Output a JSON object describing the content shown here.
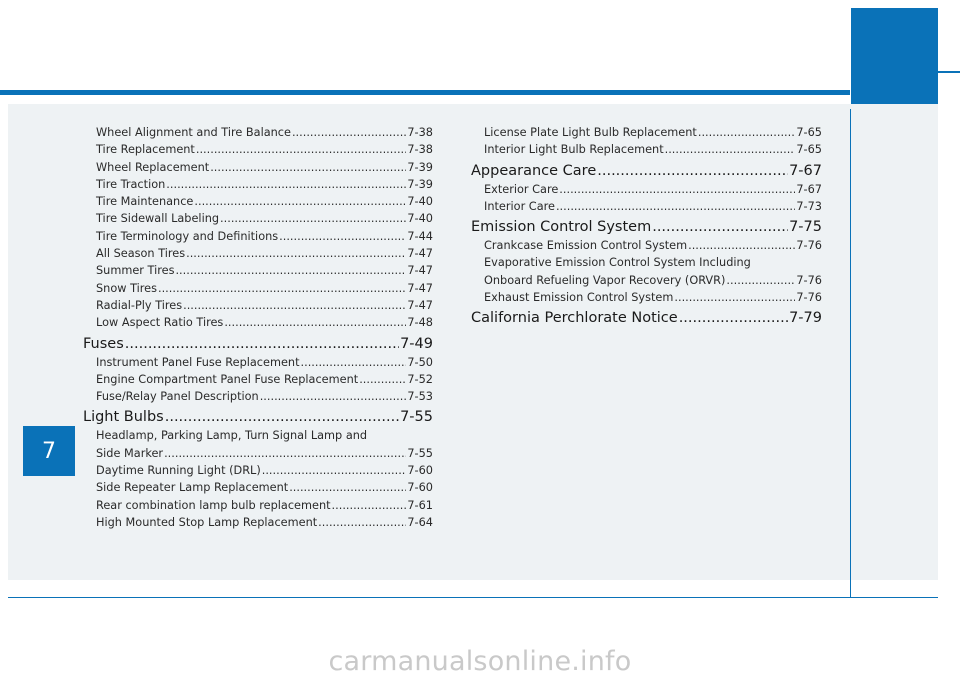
{
  "chapter": {
    "number": "7"
  },
  "left_column": {
    "entries": [
      {
        "title": "Wheel Alignment and Tire Balance",
        "page": "7-38"
      },
      {
        "title": "Tire Replacement",
        "page": "7-38"
      },
      {
        "title": "Wheel Replacement",
        "page": "7-39"
      },
      {
        "title": "Tire Traction",
        "page": "7-39"
      },
      {
        "title": "Tire Maintenance",
        "page": "7-40"
      },
      {
        "title": "Tire Sidewall Labeling",
        "page": "7-40"
      },
      {
        "title": "Tire Terminology and Definitions",
        "page": "7-44"
      },
      {
        "title": "All Season Tires",
        "page": "7-47"
      },
      {
        "title": "Summer Tires",
        "page": "7-47"
      },
      {
        "title": "Snow Tires",
        "page": "7-47"
      },
      {
        "title": "Radial-Ply Tires",
        "page": "7-47"
      },
      {
        "title": "Low Aspect Ratio Tires",
        "page": "7-48"
      }
    ],
    "fuses": {
      "title": "Fuses",
      "page": "7-49",
      "entries": [
        {
          "title": "Instrument Panel Fuse Replacement",
          "page": "7-50"
        },
        {
          "title": "Engine Compartment Panel Fuse Replacement",
          "page": "7-52"
        },
        {
          "title": "Fuse/Relay Panel Description",
          "page": "7-53"
        }
      ]
    },
    "light_bulbs": {
      "title": "Light Bulbs",
      "page": "7-55",
      "first_line": "Headlamp, Parking Lamp, Turn Signal Lamp and",
      "first_cont": {
        "title": "Side Marker",
        "page": "7-55"
      },
      "entries": [
        {
          "title": "Daytime Running Light (DRL)",
          "page": "7-60"
        },
        {
          "title": "Side Repeater Lamp Replacement",
          "page": "7-60"
        },
        {
          "title": "Rear combination lamp bulb replacement",
          "page": "7-61"
        },
        {
          "title": "High Mounted Stop Lamp Replacement",
          "page": "7-64"
        }
      ]
    }
  },
  "right_column": {
    "entries": [
      {
        "title": "License Plate Light Bulb Replacement",
        "page": "7-65"
      },
      {
        "title": "Interior Light Bulb Replacement",
        "page": "7-65"
      }
    ],
    "appearance": {
      "title": "Appearance Care",
      "page": "7-67",
      "entries": [
        {
          "title": "Exterior Care",
          "page": "7-67"
        },
        {
          "title": "Interior Care",
          "page": "7-73"
        }
      ]
    },
    "emission": {
      "title": "Emission Control System",
      "page": "7-75",
      "entries": [
        {
          "title": "Crankcase Emission Control System",
          "page": "7-76"
        }
      ],
      "evap_line": "Evaporative Emission Control System Including",
      "evap_cont": {
        "title": "Onboard Refueling Vapor Recovery (ORVR)",
        "page": "7-76"
      },
      "entries_after": [
        {
          "title": "Exhaust Emission Control System",
          "page": "7-76"
        }
      ]
    },
    "california": {
      "title": "California Perchlorate Notice",
      "page": "7-79"
    }
  },
  "watermark": "carmanualsonline.info",
  "colors": {
    "accent": "#0a72b8",
    "panel": "#eef2f4"
  }
}
